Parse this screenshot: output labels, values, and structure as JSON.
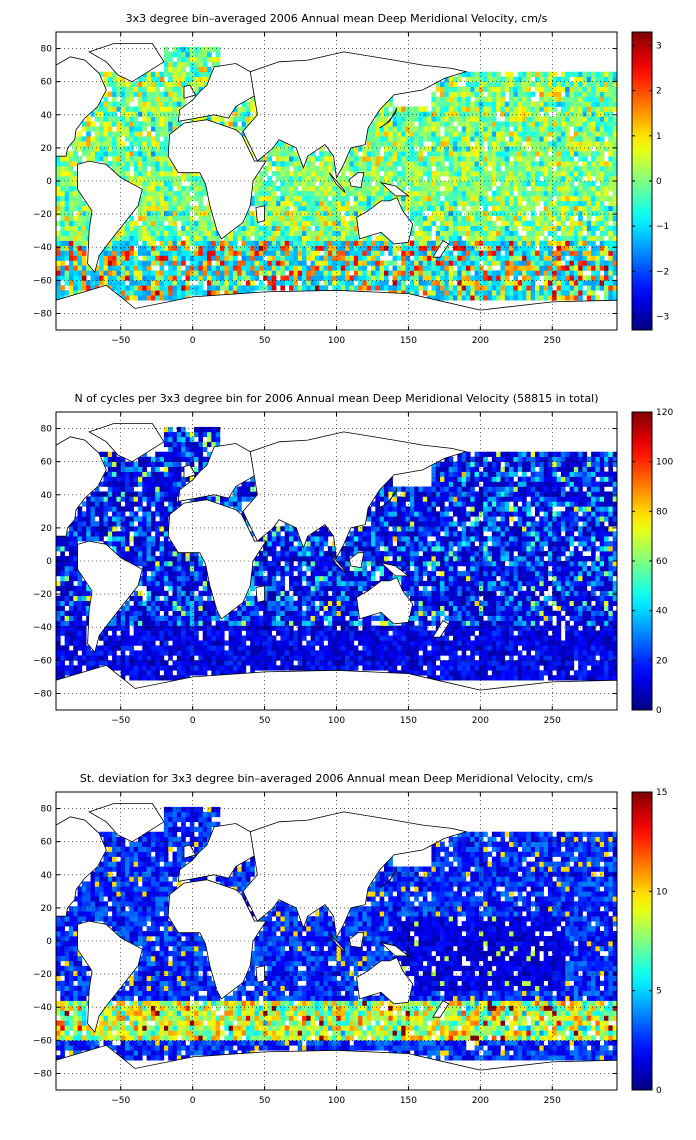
{
  "figure": {
    "colormap": "jet",
    "land_color": "#ffffff",
    "coast_color": "#000000",
    "grid_style": "dotted",
    "axes_color": "#000000",
    "background": "#ffffff"
  },
  "chart_data": [
    {
      "type": "heatmap",
      "title": "3x3 degree bin–averaged 2006 Annual mean Deep Meridional Velocity, cm/s",
      "xlabel": "",
      "ylabel": "",
      "xlim": [
        -95,
        295
      ],
      "ylim": [
        -90,
        90
      ],
      "xticks": [
        -50,
        0,
        50,
        100,
        150,
        200,
        250
      ],
      "yticks": [
        -80,
        -60,
        -40,
        -20,
        0,
        20,
        40,
        60,
        80
      ],
      "xticklabels": [
        "−50",
        "0",
        "50",
        "100",
        "150",
        "200",
        "250"
      ],
      "yticklabels": [
        "−80",
        "−60",
        "−40",
        "−20",
        "0",
        "20",
        "40",
        "60",
        "80"
      ],
      "bin_size_deg": 3,
      "grid": true,
      "colorbar": {
        "location": "right",
        "clim": [
          -3.3,
          3.3
        ],
        "ticks": [
          -3,
          -2,
          -1,
          0,
          1,
          2,
          3
        ],
        "ticklabels": [
          "−3",
          "−2",
          "−1",
          "0",
          "1",
          "2",
          "3"
        ]
      }
    },
    {
      "type": "heatmap",
      "title": "N of cycles per 3x3 degree bin for 2006 Annual mean Deep Meridional Velocity (58815 in total)",
      "xlabel": "",
      "ylabel": "",
      "xlim": [
        -95,
        295
      ],
      "ylim": [
        -90,
        90
      ],
      "xticks": [
        -50,
        0,
        50,
        100,
        150,
        200,
        250
      ],
      "yticks": [
        -80,
        -60,
        -40,
        -20,
        0,
        20,
        40,
        60,
        80
      ],
      "xticklabels": [
        "−50",
        "0",
        "50",
        "100",
        "150",
        "200",
        "250"
      ],
      "yticklabels": [
        "−80",
        "−60",
        "−40",
        "−20",
        "0",
        "20",
        "40",
        "60",
        "80"
      ],
      "bin_size_deg": 3,
      "total_cycles": 58815,
      "grid": true,
      "colorbar": {
        "location": "right",
        "clim": [
          0,
          120
        ],
        "ticks": [
          0,
          20,
          40,
          60,
          80,
          100,
          120
        ],
        "ticklabels": [
          "0",
          "20",
          "40",
          "60",
          "80",
          "100",
          "120"
        ]
      }
    },
    {
      "type": "heatmap",
      "title": "St. deviation for 3x3 degree bin–averaged 2006 Annual mean Deep Meridional Velocity, cm/s",
      "xlabel": "",
      "ylabel": "",
      "xlim": [
        -95,
        295
      ],
      "ylim": [
        -90,
        90
      ],
      "xticks": [
        -50,
        0,
        50,
        100,
        150,
        200,
        250
      ],
      "yticks": [
        -80,
        -60,
        -40,
        -20,
        0,
        20,
        40,
        60,
        80
      ],
      "xticklabels": [
        "−50",
        "0",
        "50",
        "100",
        "150",
        "200",
        "250"
      ],
      "yticklabels": [
        "−80",
        "−60",
        "−40",
        "−20",
        "0",
        "20",
        "40",
        "60",
        "80"
      ],
      "bin_size_deg": 3,
      "grid": true,
      "colorbar": {
        "location": "right",
        "clim": [
          0,
          15
        ],
        "ticks": [
          0,
          5,
          10,
          15
        ],
        "ticklabels": [
          "0",
          "5",
          "10",
          "15"
        ]
      }
    }
  ]
}
